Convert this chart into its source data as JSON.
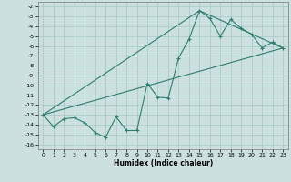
{
  "xlabel": "Humidex (Indice chaleur)",
  "xlim": [
    -0.5,
    23.5
  ],
  "ylim": [
    -16.5,
    -1.5
  ],
  "yticks": [
    -16,
    -15,
    -14,
    -13,
    -12,
    -11,
    -10,
    -9,
    -8,
    -7,
    -6,
    -5,
    -4,
    -3,
    -2
  ],
  "xticks": [
    0,
    1,
    2,
    3,
    4,
    5,
    6,
    7,
    8,
    9,
    10,
    11,
    12,
    13,
    14,
    15,
    16,
    17,
    18,
    19,
    20,
    21,
    22,
    23
  ],
  "line_color": "#2e7d6e",
  "bg_color": "#cce0e0",
  "grid_color": "#aacccc",
  "line1_x": [
    0,
    1,
    2,
    3,
    4,
    5,
    6,
    7,
    8,
    9,
    10,
    11,
    12,
    13,
    14,
    15,
    16,
    17,
    18,
    19,
    20,
    21,
    22,
    23
  ],
  "line1_y": [
    -13.0,
    -14.2,
    -13.4,
    -13.3,
    -13.8,
    -14.8,
    -15.3,
    -13.2,
    -14.6,
    -14.6,
    -9.8,
    -11.2,
    -11.3,
    -7.2,
    -5.3,
    -2.4,
    -3.2,
    -5.0,
    -3.3,
    -4.2,
    -4.8,
    -6.2,
    -5.6,
    -6.2
  ],
  "line2_x": [
    0,
    23
  ],
  "line2_y": [
    -13.0,
    -6.2
  ],
  "line3_x": [
    0,
    15,
    23
  ],
  "line3_y": [
    -13.0,
    -2.4,
    -6.2
  ]
}
